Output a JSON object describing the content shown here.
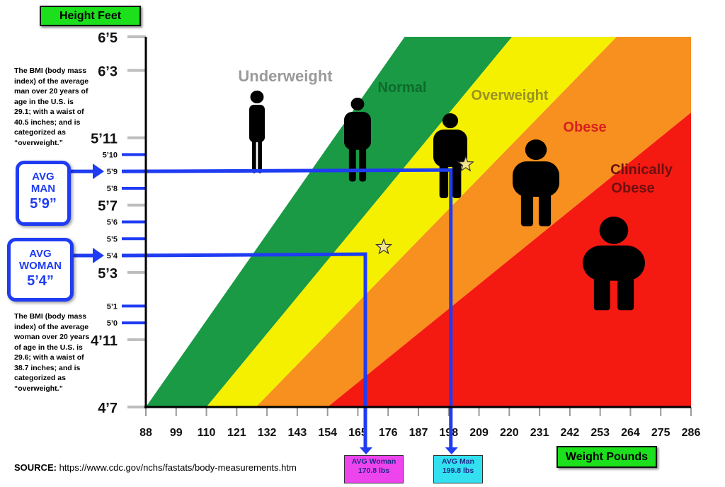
{
  "header": {
    "y_title": "Height Feet",
    "x_title": "Weight Pounds"
  },
  "notes": {
    "man": "The BMI (body mass index) of the average man over 20 years of age in the U.S. is 29.1; with a waist of 40.5 inches; and is categorized as “overweight.”",
    "woman": "The BMI (body mass index) of the average woman over 20 years of age in the U.S. is 29.6; with a waist of 38.7 inches; and is categorized as “overweight.”"
  },
  "avg_man": {
    "line1": "AVG",
    "line2": "MAN",
    "line3": "5’9”"
  },
  "avg_woman": {
    "line1": "AVG",
    "line2": "WOMAN",
    "line3": "5’4”"
  },
  "weight_boxes": {
    "woman": {
      "line1": "AVG Woman",
      "line2": "170.8 lbs",
      "bg": "#ee44ee"
    },
    "man": {
      "line1": "AVG Man",
      "line2": "199.8 lbs",
      "bg": "#33e0f0"
    }
  },
  "source": {
    "label": "SOURCE:",
    "url": "https://www.cdc.gov/nchs/fastats/body-measurements.htm"
  },
  "chart_data": {
    "type": "area",
    "x_unit": "pounds",
    "y_unit": "inches",
    "xlim": [
      88,
      286
    ],
    "ylim": [
      55,
      77
    ],
    "x_ticks": [
      88,
      99,
      110,
      121,
      132,
      143,
      154,
      165,
      176,
      187,
      198,
      209,
      220,
      231,
      242,
      253,
      264,
      275,
      286
    ],
    "y_ticks": [
      {
        "value": 77,
        "label": "6’5",
        "size": "large"
      },
      {
        "value": 75,
        "label": "6’3",
        "size": "large"
      },
      {
        "value": 71,
        "label": "5’11",
        "size": "large"
      },
      {
        "value": 70,
        "label": "5’10",
        "size": "small"
      },
      {
        "value": 69,
        "label": "5’9",
        "size": "small"
      },
      {
        "value": 68,
        "label": "5’8",
        "size": "small"
      },
      {
        "value": 67,
        "label": "5’7",
        "size": "large"
      },
      {
        "value": 66,
        "label": "5’6",
        "size": "small"
      },
      {
        "value": 65,
        "label": "5’5",
        "size": "small"
      },
      {
        "value": 64,
        "label": "5’4",
        "size": "small"
      },
      {
        "value": 63,
        "label": "5’3",
        "size": "large"
      },
      {
        "value": 61,
        "label": "5’1",
        "size": "small"
      },
      {
        "value": 60,
        "label": "5’0",
        "size": "small"
      },
      {
        "value": 59,
        "label": "4’11",
        "size": "large"
      },
      {
        "value": 55,
        "label": "4’7",
        "size": "large"
      }
    ],
    "bands": [
      {
        "name": "Underweight",
        "color": "#ffffff",
        "label_color": "#9a9a9a"
      },
      {
        "name": "Normal",
        "color": "#1a9a44",
        "label_color": "#0e6a2c"
      },
      {
        "name": "Overweight",
        "color": "#f4f000",
        "label_color": "#999222"
      },
      {
        "name": "Obese",
        "color": "#f7901e",
        "label_color": "#d62020"
      },
      {
        "name": "Clinically Obese",
        "color": "#f41a12",
        "label_color": "#6e0f0f"
      }
    ],
    "boundaries": [
      [
        [
          88,
          55
        ],
        [
          182,
          77
        ]
      ],
      [
        [
          110,
          55
        ],
        [
          221,
          77
        ]
      ],
      [
        [
          128,
          55
        ],
        [
          259,
          77
        ]
      ],
      [
        [
          154,
          55
        ],
        [
          286,
          72.5
        ]
      ]
    ],
    "markers": [
      {
        "name": "AVG Woman",
        "weight": 170.8,
        "height": 64
      },
      {
        "name": "AVG Man",
        "weight": 199.8,
        "height": 69
      }
    ],
    "guide_color": "#1f3cf2",
    "star_color": "#f3e38a"
  }
}
